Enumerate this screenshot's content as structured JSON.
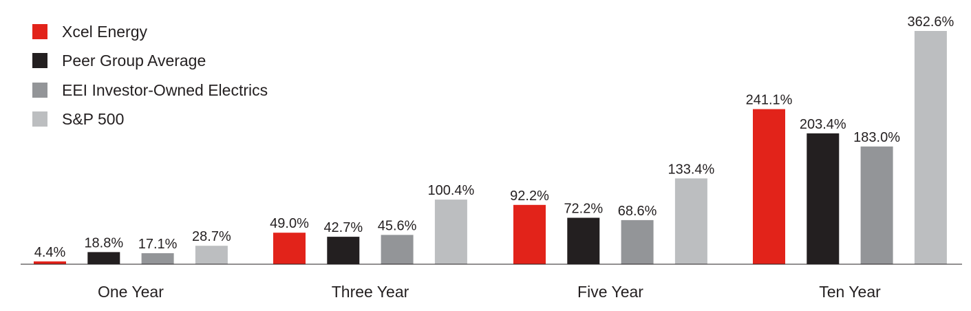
{
  "chart_data": {
    "type": "bar",
    "title": "",
    "xlabel": "",
    "ylabel": "",
    "ylim": [
      0,
      362.6
    ],
    "grid": false,
    "legend_position": "top-left",
    "categories": [
      "One Year",
      "Three Year",
      "Five Year",
      "Ten Year"
    ],
    "series": [
      {
        "name": "Xcel Energy",
        "color": "#e2231a",
        "values": [
          4.4,
          49.0,
          92.2,
          241.1
        ],
        "labels": [
          "4.4%",
          "49.0%",
          "92.2%",
          "241.1%"
        ]
      },
      {
        "name": "Peer Group Average",
        "color": "#231f20",
        "values": [
          18.8,
          42.7,
          72.2,
          203.4
        ],
        "labels": [
          "18.8%",
          "42.7%",
          "72.2%",
          "203.4%"
        ]
      },
      {
        "name": "EEI Investor-Owned Electrics",
        "color": "#939598",
        "values": [
          17.1,
          45.6,
          68.6,
          183.0
        ],
        "labels": [
          "17.1%",
          "45.6%",
          "68.6%",
          "183.0%"
        ]
      },
      {
        "name": "S&P 500",
        "color": "#bcbec0",
        "values": [
          28.7,
          100.4,
          133.4,
          362.6
        ],
        "labels": [
          "28.7%",
          "100.4%",
          "133.4%",
          "362.6%"
        ]
      }
    ]
  }
}
